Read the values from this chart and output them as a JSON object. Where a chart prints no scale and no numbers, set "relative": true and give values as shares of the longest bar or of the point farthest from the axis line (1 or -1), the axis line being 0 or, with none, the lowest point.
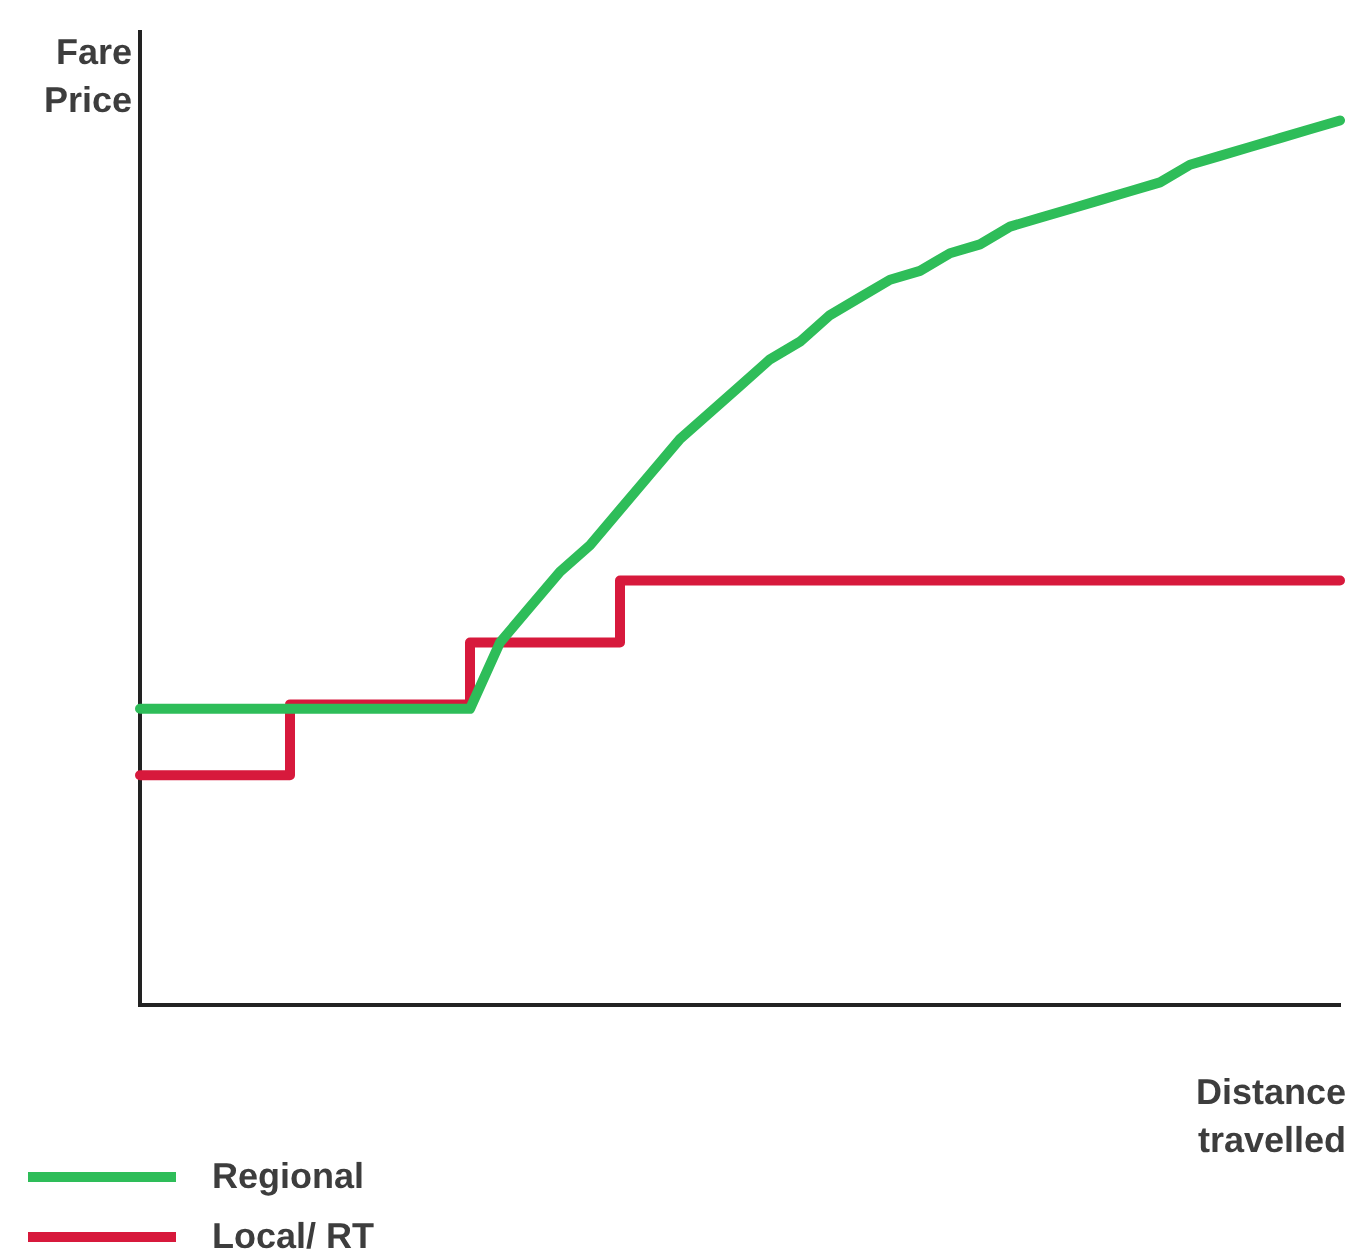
{
  "chart_data": {
    "type": "line",
    "xlabel": "Distance travelled",
    "ylabel": "Fare Price",
    "relative": true,
    "grid": false,
    "legend": "bottom left",
    "marker": "none",
    "line_style": "solid",
    "categories": [
      null,
      null,
      null,
      null,
      null,
      null,
      null,
      null,
      null,
      null,
      null,
      null,
      null,
      null,
      null,
      null,
      null,
      null,
      null,
      null,
      null,
      null,
      null,
      null,
      null,
      null,
      null,
      null,
      null,
      null,
      null,
      null,
      null,
      null,
      null,
      null,
      null,
      null,
      null,
      null,
      null
    ],
    "series": [
      {
        "name": "Regional",
        "type": "line",
        "color": "#2ebd59",
        "values": [
          0.335,
          0.335,
          0.335,
          0.335,
          0.335,
          0.335,
          0.335,
          0.335,
          0.335,
          0.335,
          0.335,
          0.335,
          0.41,
          0.45,
          0.49,
          0.52,
          0.56,
          0.6,
          0.64,
          0.67,
          0.7,
          0.73,
          0.75,
          0.78,
          0.8,
          0.82,
          0.83,
          0.85,
          0.86,
          0.88,
          0.89,
          0.9,
          0.91,
          0.92,
          0.93,
          0.95,
          0.96,
          0.97,
          0.98,
          0.99,
          1
        ]
      },
      {
        "name": "Local/ RT",
        "type": "step",
        "color": "#d7193c",
        "values": [
          0.26,
          0.26,
          0.26,
          0.26,
          0.26,
          0.26,
          0.34,
          0.34,
          0.34,
          0.34,
          0.34,
          0.34,
          0.41,
          0.41,
          0.41,
          0.41,
          0.41,
          0.48,
          0.48,
          0.48,
          0.48,
          0.48,
          0.48,
          0.48,
          0.48,
          0.48,
          0.48,
          0.48,
          0.48,
          0.48,
          0.48,
          0.48,
          0.48,
          0.48,
          0.48,
          0.48,
          0.48,
          0.48,
          0.48,
          0.48,
          0.48
        ]
      }
    ]
  }
}
